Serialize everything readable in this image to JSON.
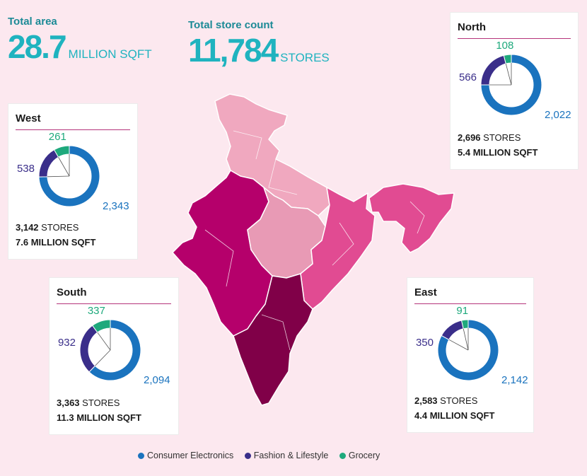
{
  "colors": {
    "consumer_electronics": "#1a73be",
    "fashion_lifestyle": "#3a2e8a",
    "grocery": "#1ea97c",
    "map_north": "#f0a8bf",
    "map_west": "#b5006b",
    "map_east": "#e14b92",
    "map_south": "#800048",
    "map_central": "#e89ab5"
  },
  "kpis": {
    "area": {
      "label": "Total area",
      "value": "28.7",
      "unit": "MILLION SQFT"
    },
    "stores": {
      "label": "Total store count",
      "value": "11,784",
      "unit": "STORES"
    }
  },
  "legend": [
    {
      "label": "Consumer Electronics",
      "color": "#1a73be"
    },
    {
      "label": "Fashion & Lifestyle",
      "color": "#3a2e8a"
    },
    {
      "label": "Grocery",
      "color": "#1ea97c"
    }
  ],
  "chart_data": [
    {
      "type": "pie",
      "title": "North",
      "categories": [
        "Consumer Electronics",
        "Fashion & Lifestyle",
        "Grocery"
      ],
      "values": [
        2022,
        566,
        108
      ],
      "value_labels": [
        "2,022",
        "566",
        "108"
      ],
      "stores_value": "2,696",
      "stores_unit": "STORES",
      "area_value": "5.4",
      "area_unit": "MILLION SQFT"
    },
    {
      "type": "pie",
      "title": "West",
      "categories": [
        "Consumer Electronics",
        "Fashion & Lifestyle",
        "Grocery"
      ],
      "values": [
        2343,
        538,
        261
      ],
      "value_labels": [
        "2,343",
        "538",
        "261"
      ],
      "stores_value": "3,142",
      "stores_unit": "STORES",
      "area_value": "7.6",
      "area_unit": "MILLION SQFT"
    },
    {
      "type": "pie",
      "title": "South",
      "categories": [
        "Consumer Electronics",
        "Fashion & Lifestyle",
        "Grocery"
      ],
      "values": [
        2094,
        932,
        337
      ],
      "value_labels": [
        "2,094",
        "932",
        "337"
      ],
      "stores_value": "3,363",
      "stores_unit": "STORES",
      "area_value": "11.3",
      "area_unit": "MILLION SQFT"
    },
    {
      "type": "pie",
      "title": "East",
      "categories": [
        "Consumer Electronics",
        "Fashion & Lifestyle",
        "Grocery"
      ],
      "values": [
        2142,
        350,
        91
      ],
      "value_labels": [
        "2,142",
        "350",
        "91"
      ],
      "stores_value": "2,583",
      "stores_unit": "STORES",
      "area_value": "4.4",
      "area_unit": "MILLION SQFT"
    }
  ]
}
